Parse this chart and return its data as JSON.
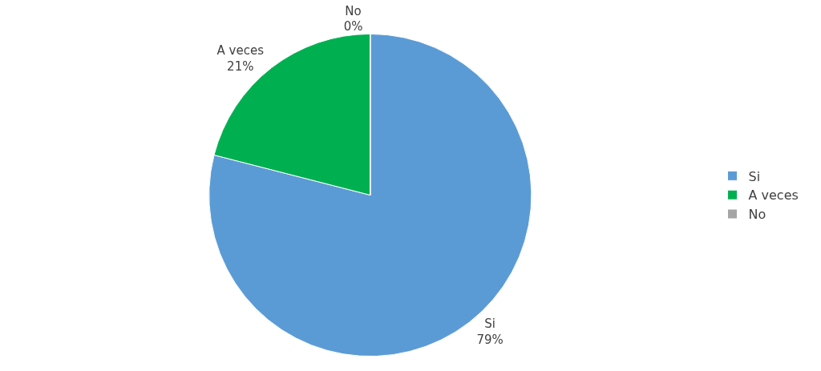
{
  "chart_data": {
    "type": "pie",
    "categories": [
      "Si",
      "A veces",
      "No"
    ],
    "values": [
      79,
      21,
      0
    ],
    "value_labels": [
      "79%",
      "21%",
      "0%"
    ],
    "colors": [
      "#5b9bd5",
      "#00b050",
      "#a5a5a5"
    ],
    "legend": "right"
  }
}
